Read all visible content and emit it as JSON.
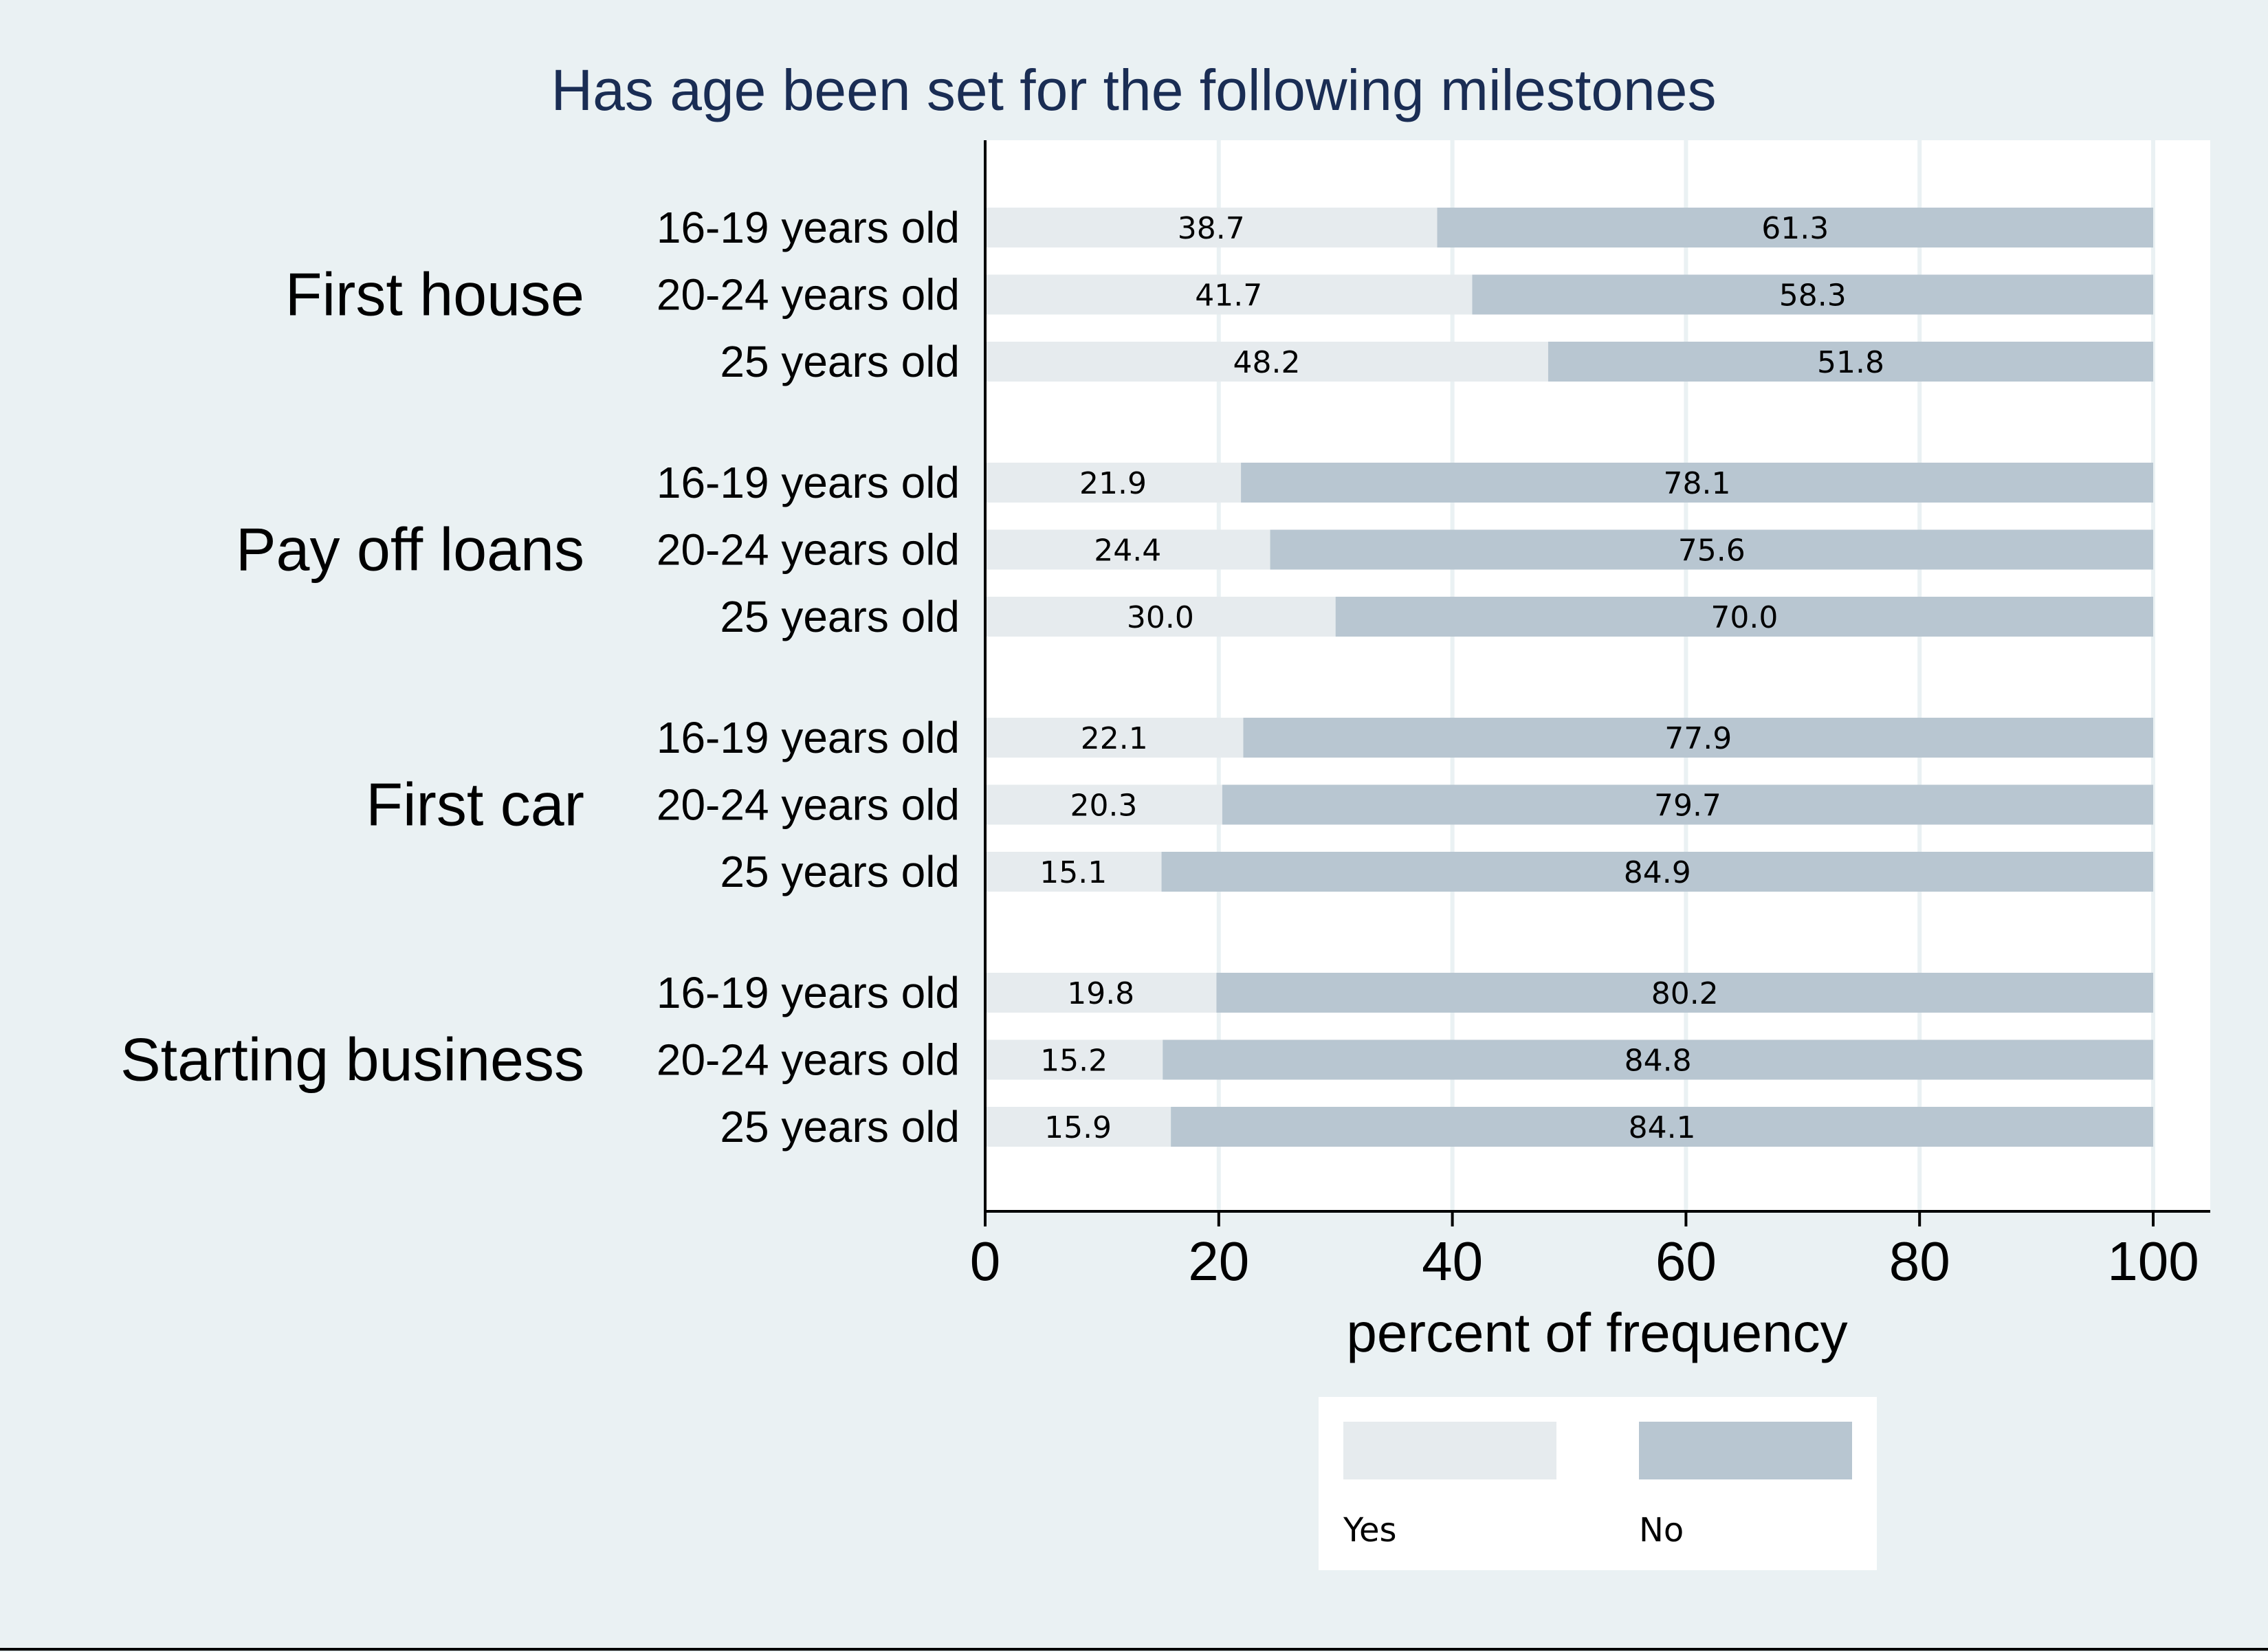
{
  "chart_data": {
    "type": "bar",
    "orientation": "horizontal",
    "stacked": true,
    "title": "Has age been set for the following milestones",
    "xlabel": "percent of frequency",
    "ylabel": "",
    "xlim": [
      0,
      100
    ],
    "xticks": [
      "0",
      "20",
      "40",
      "60",
      "80",
      "100"
    ],
    "grid": true,
    "legend_position": "bottom",
    "groups": [
      {
        "name": "First house",
        "categories": [
          "16-19 years old",
          "20-24 years old",
          "25 years old"
        ],
        "yes": [
          38.7,
          41.7,
          48.2
        ],
        "no": [
          61.3,
          58.3,
          51.8
        ]
      },
      {
        "name": "Pay off loans",
        "categories": [
          "16-19 years old",
          "20-24 years old",
          "25 years old"
        ],
        "yes": [
          21.9,
          24.4,
          30.0
        ],
        "no": [
          78.1,
          75.6,
          70.0
        ]
      },
      {
        "name": "First car",
        "categories": [
          "16-19 years old",
          "20-24 years old",
          "25 years old"
        ],
        "yes": [
          22.1,
          20.3,
          15.1
        ],
        "no": [
          77.9,
          79.7,
          84.9
        ]
      },
      {
        "name": "Starting business",
        "categories": [
          "16-19 years old",
          "20-24 years old",
          "25 years old"
        ],
        "yes": [
          19.8,
          15.2,
          15.9
        ],
        "no": [
          80.2,
          84.8,
          84.1
        ]
      }
    ],
    "series": [
      {
        "key": "yes",
        "name": "Yes",
        "color": "#e6ebee"
      },
      {
        "key": "no",
        "name": "No",
        "color": "#b8c6d1"
      }
    ]
  },
  "colors": {
    "background": "#eaf1f3",
    "plot_background": "#ffffff",
    "gridline": "#eaf1f3",
    "title": "#1a2d54",
    "text": "#000000"
  }
}
